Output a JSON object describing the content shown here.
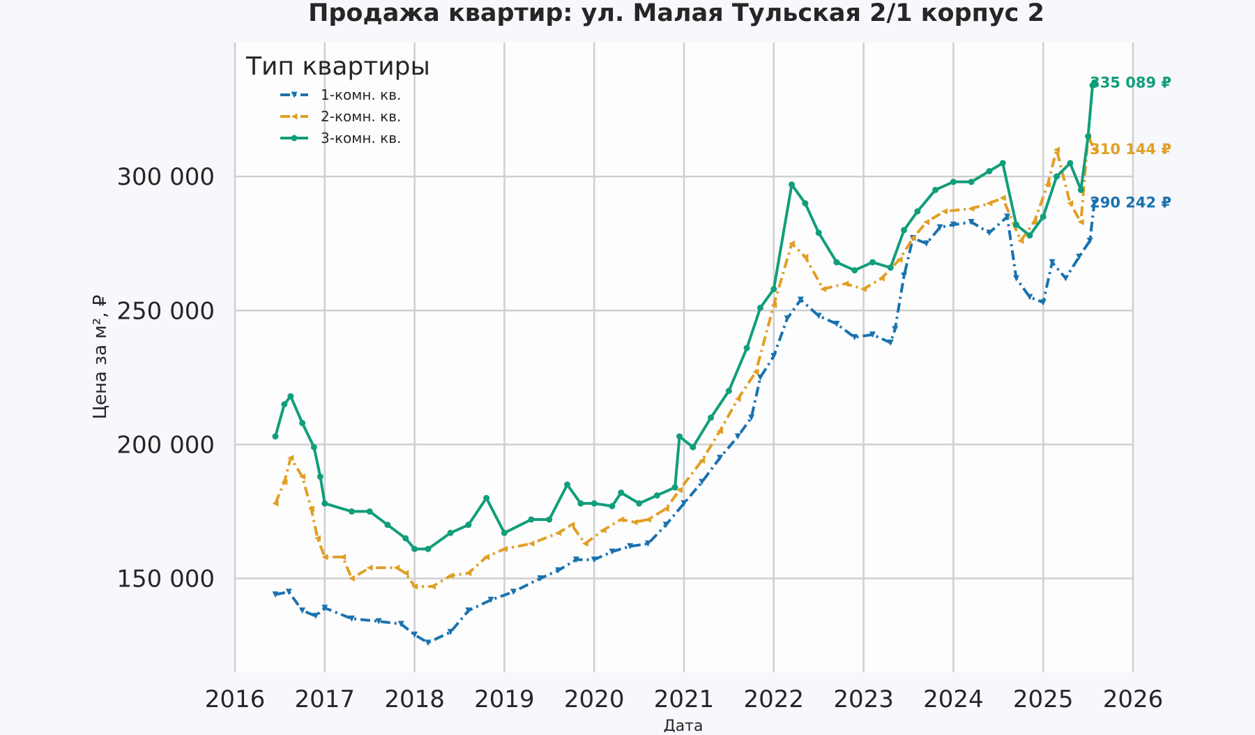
{
  "chart_data": {
    "type": "line",
    "title": "Продажа квартир: ул. Малая Тульская 2/1 корпус 2",
    "xlabel": "Дата",
    "ylabel": "Цена за м², ₽",
    "xlim": [
      2016,
      2026
    ],
    "ylim": [
      115000,
      350000
    ],
    "x_ticks": [
      "2016",
      "2017",
      "2018",
      "2019",
      "2020",
      "2021",
      "2022",
      "2023",
      "2024",
      "2025",
      "2026"
    ],
    "y_ticks": [
      {
        "value": 150000,
        "label": "150 000"
      },
      {
        "value": 200000,
        "label": "200 000"
      },
      {
        "value": 250000,
        "label": "250 000"
      },
      {
        "value": 300000,
        "label": "300 000"
      }
    ],
    "grid": true,
    "legend": {
      "title": "Тип квартиры",
      "placement": "top-left"
    },
    "series": [
      {
        "name": "1-комн. кв.",
        "color": "#1a72ae",
        "line_style": "dashdot",
        "marker": "triangle-down",
        "end_label": "290 242 ₽",
        "points": [
          [
            2016.45,
            144000
          ],
          [
            2016.6,
            145000
          ],
          [
            2016.75,
            138000
          ],
          [
            2016.9,
            136000
          ],
          [
            2017.0,
            139000
          ],
          [
            2017.3,
            135000
          ],
          [
            2017.6,
            134000
          ],
          [
            2017.85,
            133000
          ],
          [
            2018.0,
            129000
          ],
          [
            2018.15,
            126000
          ],
          [
            2018.4,
            130000
          ],
          [
            2018.6,
            138000
          ],
          [
            2018.85,
            142000
          ],
          [
            2019.1,
            145000
          ],
          [
            2019.4,
            150000
          ],
          [
            2019.6,
            153000
          ],
          [
            2019.8,
            157000
          ],
          [
            2020.0,
            157000
          ],
          [
            2020.2,
            160000
          ],
          [
            2020.4,
            162000
          ],
          [
            2020.6,
            163000
          ],
          [
            2020.8,
            170000
          ],
          [
            2021.0,
            178000
          ],
          [
            2021.2,
            186000
          ],
          [
            2021.4,
            195000
          ],
          [
            2021.6,
            203000
          ],
          [
            2021.75,
            210000
          ],
          [
            2021.85,
            225000
          ],
          [
            2022.0,
            233000
          ],
          [
            2022.15,
            247000
          ],
          [
            2022.3,
            254000
          ],
          [
            2022.5,
            248000
          ],
          [
            2022.7,
            245000
          ],
          [
            2022.9,
            240000
          ],
          [
            2023.1,
            241000
          ],
          [
            2023.3,
            238000
          ],
          [
            2023.35,
            243000
          ],
          [
            2023.45,
            263000
          ],
          [
            2023.55,
            277000
          ],
          [
            2023.7,
            275000
          ],
          [
            2023.85,
            281000
          ],
          [
            2024.0,
            282000
          ],
          [
            2024.2,
            283000
          ],
          [
            2024.4,
            279000
          ],
          [
            2024.6,
            285000
          ],
          [
            2024.7,
            262000
          ],
          [
            2024.85,
            255000
          ],
          [
            2025.0,
            253000
          ],
          [
            2025.1,
            268000
          ],
          [
            2025.25,
            262000
          ],
          [
            2025.4,
            270000
          ],
          [
            2025.52,
            276000
          ],
          [
            2025.57,
            290242
          ]
        ]
      },
      {
        "name": "2-комн. кв.",
        "color": "#e19f24",
        "line_style": "dashdot",
        "marker": "triangle-left",
        "end_label": "310 144 ₽",
        "points": [
          [
            2016.45,
            178000
          ],
          [
            2016.55,
            186000
          ],
          [
            2016.62,
            195000
          ],
          [
            2016.75,
            188000
          ],
          [
            2016.85,
            176000
          ],
          [
            2016.92,
            165000
          ],
          [
            2017.0,
            158000
          ],
          [
            2017.2,
            158000
          ],
          [
            2017.3,
            150000
          ],
          [
            2017.5,
            154000
          ],
          [
            2017.8,
            154000
          ],
          [
            2017.9,
            152000
          ],
          [
            2018.0,
            147000
          ],
          [
            2018.2,
            147000
          ],
          [
            2018.4,
            151000
          ],
          [
            2018.6,
            152000
          ],
          [
            2018.8,
            158000
          ],
          [
            2019.0,
            161000
          ],
          [
            2019.3,
            163000
          ],
          [
            2019.6,
            167000
          ],
          [
            2019.75,
            170000
          ],
          [
            2019.9,
            163000
          ],
          [
            2020.1,
            168000
          ],
          [
            2020.3,
            172000
          ],
          [
            2020.45,
            171000
          ],
          [
            2020.6,
            172000
          ],
          [
            2020.8,
            176000
          ],
          [
            2020.95,
            183000
          ],
          [
            2021.2,
            194000
          ],
          [
            2021.4,
            205000
          ],
          [
            2021.6,
            217000
          ],
          [
            2021.8,
            227000
          ],
          [
            2022.0,
            252000
          ],
          [
            2022.2,
            275000
          ],
          [
            2022.35,
            270000
          ],
          [
            2022.55,
            258000
          ],
          [
            2022.8,
            260000
          ],
          [
            2023.0,
            258000
          ],
          [
            2023.2,
            262000
          ],
          [
            2023.4,
            269000
          ],
          [
            2023.55,
            277000
          ],
          [
            2023.7,
            283000
          ],
          [
            2023.9,
            287000
          ],
          [
            2024.2,
            288000
          ],
          [
            2024.4,
            290000
          ],
          [
            2024.55,
            292000
          ],
          [
            2024.75,
            276000
          ],
          [
            2024.9,
            283000
          ],
          [
            2025.05,
            297000
          ],
          [
            2025.15,
            310000
          ],
          [
            2025.3,
            290000
          ],
          [
            2025.42,
            283000
          ],
          [
            2025.5,
            315000
          ],
          [
            2025.57,
            310144
          ]
        ]
      },
      {
        "name": "3-комн. кв.",
        "color": "#119e7a",
        "line_style": "solid",
        "marker": "circle",
        "end_label": "335 089 ₽",
        "points": [
          [
            2016.45,
            203000
          ],
          [
            2016.55,
            215000
          ],
          [
            2016.62,
            218000
          ],
          [
            2016.75,
            208000
          ],
          [
            2016.88,
            199000
          ],
          [
            2016.95,
            188000
          ],
          [
            2017.0,
            178000
          ],
          [
            2017.3,
            175000
          ],
          [
            2017.5,
            175000
          ],
          [
            2017.7,
            170000
          ],
          [
            2017.9,
            165000
          ],
          [
            2018.0,
            161000
          ],
          [
            2018.15,
            161000
          ],
          [
            2018.4,
            167000
          ],
          [
            2018.6,
            170000
          ],
          [
            2018.8,
            180000
          ],
          [
            2019.0,
            167000
          ],
          [
            2019.3,
            172000
          ],
          [
            2019.5,
            172000
          ],
          [
            2019.7,
            185000
          ],
          [
            2019.85,
            178000
          ],
          [
            2020.0,
            178000
          ],
          [
            2020.2,
            177000
          ],
          [
            2020.3,
            182000
          ],
          [
            2020.5,
            178000
          ],
          [
            2020.7,
            181000
          ],
          [
            2020.9,
            184000
          ],
          [
            2020.95,
            203000
          ],
          [
            2021.1,
            199000
          ],
          [
            2021.3,
            210000
          ],
          [
            2021.5,
            220000
          ],
          [
            2021.7,
            236000
          ],
          [
            2021.85,
            251000
          ],
          [
            2022.0,
            258000
          ],
          [
            2022.2,
            297000
          ],
          [
            2022.35,
            290000
          ],
          [
            2022.5,
            279000
          ],
          [
            2022.7,
            268000
          ],
          [
            2022.9,
            265000
          ],
          [
            2023.1,
            268000
          ],
          [
            2023.3,
            266000
          ],
          [
            2023.45,
            280000
          ],
          [
            2023.6,
            287000
          ],
          [
            2023.8,
            295000
          ],
          [
            2024.0,
            298000
          ],
          [
            2024.2,
            298000
          ],
          [
            2024.4,
            302000
          ],
          [
            2024.55,
            305000
          ],
          [
            2024.7,
            282000
          ],
          [
            2024.85,
            278000
          ],
          [
            2025.0,
            285000
          ],
          [
            2025.15,
            300000
          ],
          [
            2025.3,
            305000
          ],
          [
            2025.42,
            295000
          ],
          [
            2025.5,
            315000
          ],
          [
            2025.55,
            334000
          ],
          [
            2025.57,
            335089
          ]
        ]
      }
    ]
  }
}
